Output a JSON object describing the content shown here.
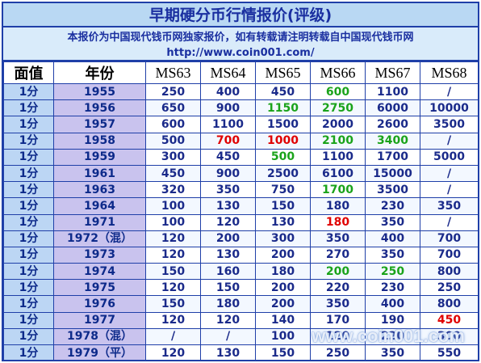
{
  "title": "早期硬分币行情报价(评级)",
  "notice": {
    "line1": "本报价为中国现代钱币网独家报价，如有转载请注明转载自中国现代钱币网",
    "line2": "http://www.coin001.com/"
  },
  "colors": {
    "default_value": "#1a2a8a",
    "green": "#1aa31a",
    "red": "#e00000",
    "border": "#1f3fa8"
  },
  "table": {
    "headers": [
      "面值",
      "年份",
      "MS63",
      "MS64",
      "MS65",
      "MS66",
      "MS67",
      "MS68"
    ],
    "rows": [
      {
        "denom": "1分",
        "year": "1955",
        "values": [
          "250",
          "400",
          "450",
          "600",
          "1100",
          "/"
        ],
        "colors": [
          "",
          "",
          "",
          "green",
          "",
          ""
        ]
      },
      {
        "denom": "1分",
        "year": "1956",
        "values": [
          "650",
          "900",
          "1150",
          "2750",
          "6000",
          "10000"
        ],
        "colors": [
          "",
          "",
          "green",
          "green",
          "",
          ""
        ]
      },
      {
        "denom": "1分",
        "year": "1957",
        "values": [
          "600",
          "1100",
          "1500",
          "2000",
          "2600",
          "3500"
        ],
        "colors": [
          "",
          "",
          "",
          "",
          "",
          ""
        ]
      },
      {
        "denom": "1分",
        "year": "1958",
        "values": [
          "500",
          "700",
          "1000",
          "2100",
          "3400",
          "/"
        ],
        "colors": [
          "",
          "red",
          "red",
          "green",
          "green",
          ""
        ]
      },
      {
        "denom": "1分",
        "year": "1959",
        "values": [
          "300",
          "450",
          "500",
          "1100",
          "1700",
          "5000"
        ],
        "colors": [
          "",
          "",
          "green",
          "",
          "",
          ""
        ]
      },
      {
        "denom": "1分",
        "year": "1961",
        "values": [
          "450",
          "900",
          "2500",
          "6100",
          "15000",
          "/"
        ],
        "colors": [
          "",
          "",
          "",
          "",
          "",
          ""
        ]
      },
      {
        "denom": "1分",
        "year": "1963",
        "values": [
          "320",
          "350",
          "750",
          "1700",
          "3500",
          "/"
        ],
        "colors": [
          "",
          "",
          "",
          "green",
          "",
          ""
        ]
      },
      {
        "denom": "1分",
        "year": "1964",
        "values": [
          "100",
          "130",
          "150",
          "180",
          "230",
          "350"
        ],
        "colors": [
          "",
          "",
          "",
          "",
          "",
          ""
        ]
      },
      {
        "denom": "1分",
        "year": "1971",
        "values": [
          "100",
          "120",
          "130",
          "180",
          "350",
          "/"
        ],
        "colors": [
          "",
          "",
          "",
          "red",
          "",
          ""
        ]
      },
      {
        "denom": "1分",
        "year": "1972（混）",
        "values": [
          "120",
          "200",
          "300",
          "350",
          "400",
          "700"
        ],
        "colors": [
          "",
          "",
          "",
          "",
          "",
          ""
        ]
      },
      {
        "denom": "1分",
        "year": "1973",
        "values": [
          "120",
          "130",
          "200",
          "270",
          "350",
          "700"
        ],
        "colors": [
          "",
          "",
          "",
          "",
          "",
          ""
        ]
      },
      {
        "denom": "1分",
        "year": "1974",
        "values": [
          "150",
          "160",
          "180",
          "200",
          "250",
          "800"
        ],
        "colors": [
          "",
          "",
          "",
          "green",
          "green",
          ""
        ]
      },
      {
        "denom": "1分",
        "year": "1975",
        "values": [
          "120",
          "150",
          "200",
          "220",
          "230",
          "250"
        ],
        "colors": [
          "",
          "",
          "",
          "",
          "",
          ""
        ]
      },
      {
        "denom": "1分",
        "year": "1976",
        "values": [
          "150",
          "180",
          "200",
          "350",
          "400",
          "800"
        ],
        "colors": [
          "",
          "",
          "",
          "",
          "",
          ""
        ]
      },
      {
        "denom": "1分",
        "year": "1977",
        "values": [
          "120",
          "120",
          "140",
          "170",
          "190",
          "450"
        ],
        "colors": [
          "",
          "",
          "",
          "",
          "",
          "red"
        ]
      },
      {
        "denom": "1分",
        "year": "1978（混）",
        "values": [
          "/",
          "/",
          "100",
          "120",
          "220",
          "300"
        ],
        "colors": [
          "",
          "",
          "",
          "",
          "",
          ""
        ]
      },
      {
        "denom": "1分",
        "year": "1979（平）",
        "values": [
          "120",
          "130",
          "150",
          "250",
          "350",
          "550"
        ],
        "colors": [
          "",
          "",
          "",
          "",
          "",
          ""
        ]
      }
    ]
  },
  "watermark": "www.coin001.com"
}
